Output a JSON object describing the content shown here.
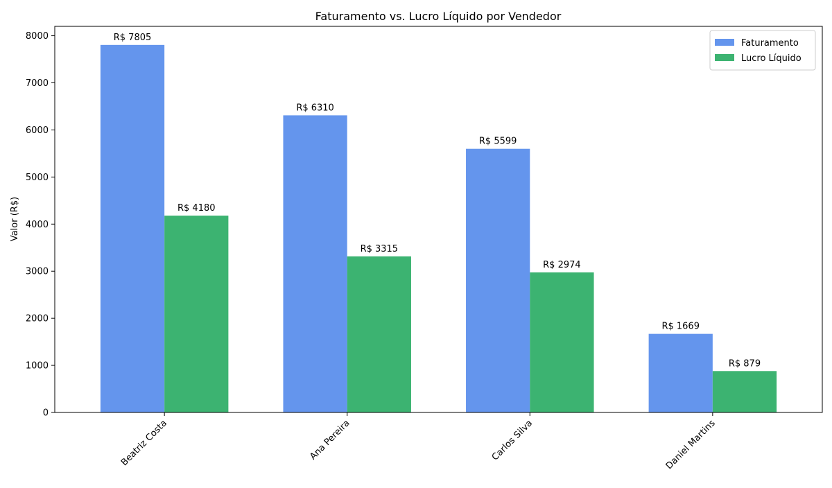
{
  "chart_data": {
    "type": "bar",
    "title": "Faturamento vs. Lucro Líquido por Vendedor",
    "xlabel": "",
    "ylabel": "Valor (R$)",
    "categories": [
      "Beatriz Costa",
      "Ana Pereira",
      "Carlos Silva",
      "Daniel Martins"
    ],
    "series": [
      {
        "name": "Faturamento",
        "color": "#6495ED",
        "values": [
          7805,
          6310,
          5599,
          1669
        ]
      },
      {
        "name": "Lucro Líquido",
        "color": "#3CB371",
        "values": [
          4180,
          3315,
          2974,
          879
        ]
      }
    ],
    "value_label_prefix": "R$ ",
    "ylim": [
      0,
      8200
    ],
    "yticks": [
      0,
      1000,
      2000,
      3000,
      4000,
      5000,
      6000,
      7000,
      8000
    ],
    "grid": false,
    "legend_position": "top-right",
    "xtick_rotation": "45deg"
  }
}
